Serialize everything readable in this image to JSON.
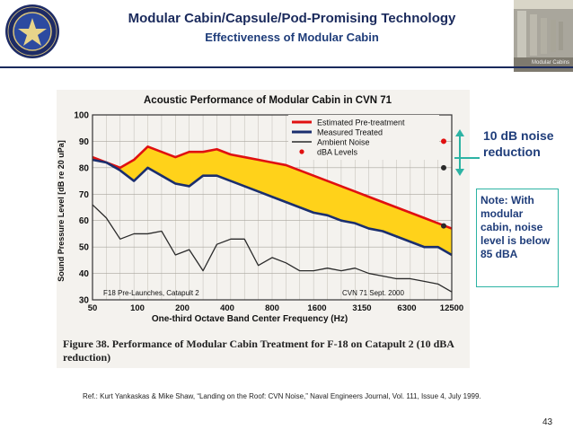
{
  "header": {
    "title": "Modular Cabin/Capsule/Pod-Promising Technology",
    "subtitle": "Effectiveness of Modular Cabin",
    "seal_label": "DEPARTMENT OF DEFENSE",
    "photo_caption": "Modular Cabins"
  },
  "callout": {
    "reduction_label": "10 dB noise reduction",
    "note": "Note: With modular cabin, noise level is below 85 dBA"
  },
  "figure": {
    "caption_number": "Figure 38.",
    "caption_text": "Performance of Modular Cabin Treatment for F-18 on Catapult 2 (10 dBA reduction)"
  },
  "reference": "Ref.: Kurt Yankaskas & Mike Shaw, “Landing on the Roof: CVN Noise,” Naval Engineers Journal, Vol. 111, Issue 4, July 1999.",
  "page_number": "43",
  "colors": {
    "estimated": "#e01010",
    "measured": "#1a2e6e",
    "ambient": "#2a2a2a",
    "fill": "#ffd21a",
    "accent": "#2db3a4",
    "title_navy": "#1a2a5c"
  },
  "chart_data": {
    "type": "line",
    "title": "Acoustic Performance of Modular Cabin in CVN 71",
    "xlabel": "One-third Octave Band Center Frequency (Hz)",
    "ylabel": "Sound Pressure Level [dB re 20 uPa]",
    "x_tick_labels": [
      "50",
      "100",
      "200",
      "400",
      "800",
      "1600",
      "3150",
      "6300",
      "12500"
    ],
    "y_ticks": [
      30,
      40,
      50,
      60,
      70,
      80,
      90,
      100
    ],
    "ylim": [
      30,
      100
    ],
    "grid": true,
    "legend_position": "top-right",
    "annotations": [
      "F18 Pre-Launches, Catapult 2",
      "CVN 71 Sept. 2000"
    ],
    "series": [
      {
        "name": "Estimated Pre-treatment",
        "color_key": "estimated",
        "values": [
          84,
          82,
          80,
          83,
          88,
          86,
          84,
          86,
          86,
          87,
          85,
          84,
          83,
          82,
          81,
          79,
          77,
          75,
          73,
          71,
          69,
          67,
          65,
          63,
          61,
          59,
          57
        ]
      },
      {
        "name": "Measured Treated",
        "color_key": "measured",
        "values": [
          83,
          82,
          79,
          75,
          80,
          77,
          74,
          73,
          77,
          77,
          75,
          73,
          71,
          69,
          67,
          65,
          63,
          62,
          60,
          59,
          57,
          56,
          54,
          52,
          50,
          50,
          47
        ]
      },
      {
        "name": "Ambient Noise",
        "color_key": "ambient",
        "values": [
          66,
          61,
          53,
          55,
          55,
          56,
          47,
          49,
          41,
          51,
          53,
          53,
          43,
          46,
          44,
          41,
          41,
          42,
          41,
          42,
          40,
          39,
          38,
          38,
          37,
          36,
          33
        ]
      }
    ],
    "dba_levels": {
      "name": "dBA Levels",
      "points": [
        {
          "label": "Estimated Pre-treatment",
          "value": 90,
          "color_key": "estimated"
        },
        {
          "label": "Measured Treated",
          "value": 80,
          "color_key": "ambient"
        },
        {
          "label": "Ambient Noise",
          "value": 58,
          "color_key": "ambient"
        }
      ]
    }
  }
}
